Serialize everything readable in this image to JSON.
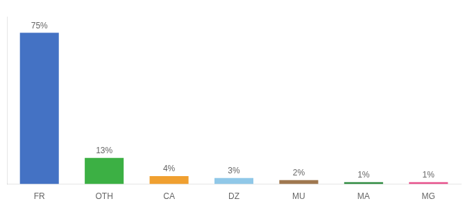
{
  "chart_data": {
    "type": "bar",
    "categories": [
      "FR",
      "OTH",
      "CA",
      "DZ",
      "MU",
      "MA",
      "MG"
    ],
    "values": [
      75,
      13,
      4,
      3,
      2,
      1,
      1
    ],
    "value_labels": [
      "75%",
      "13%",
      "4%",
      "3%",
      "2%",
      "1%",
      "1%"
    ],
    "colors": [
      "#4472c4",
      "#3cb044",
      "#f0a030",
      "#90c8e8",
      "#a07850",
      "#2e8b40",
      "#e8508c"
    ],
    "ylim": [
      0,
      83
    ],
    "grid": false,
    "data_labels": true,
    "tick_labels": "x"
  }
}
